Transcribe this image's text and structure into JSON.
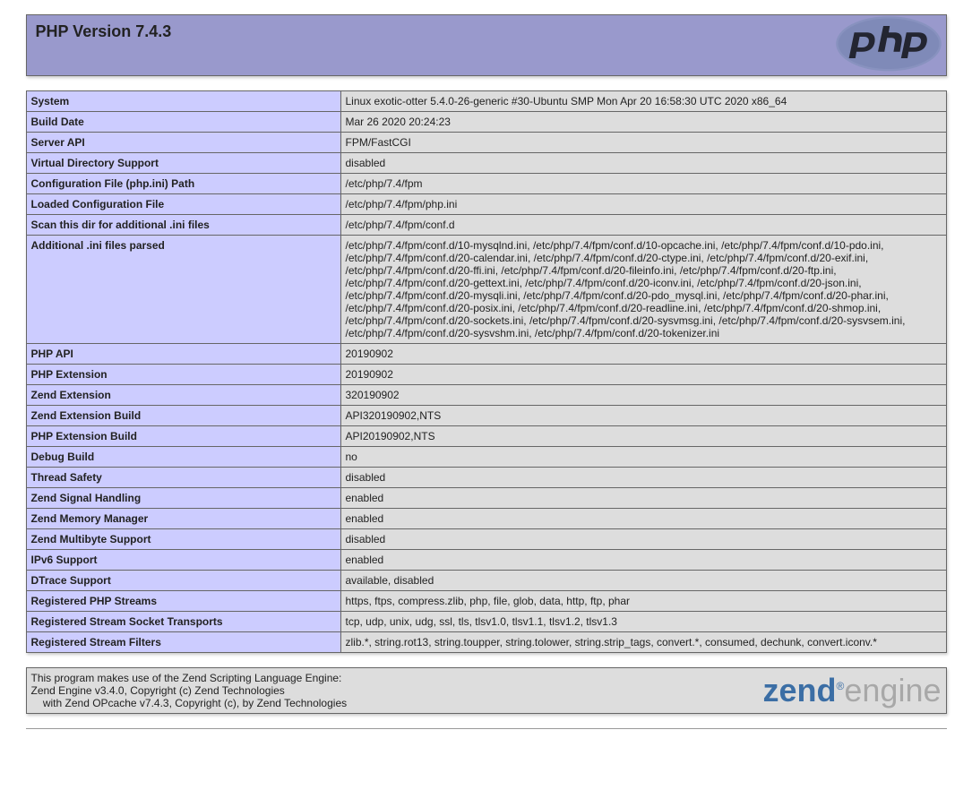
{
  "header": {
    "title": "PHP Version 7.4.3"
  },
  "rows": [
    {
      "label": "System",
      "value": "Linux exotic-otter 5.4.0-26-generic #30-Ubuntu SMP Mon Apr 20 16:58:30 UTC 2020 x86_64"
    },
    {
      "label": "Build Date",
      "value": "Mar 26 2020 20:24:23"
    },
    {
      "label": "Server API",
      "value": "FPM/FastCGI"
    },
    {
      "label": "Virtual Directory Support",
      "value": "disabled"
    },
    {
      "label": "Configuration File (php.ini) Path",
      "value": "/etc/php/7.4/fpm"
    },
    {
      "label": "Loaded Configuration File",
      "value": "/etc/php/7.4/fpm/php.ini"
    },
    {
      "label": "Scan this dir for additional .ini files",
      "value": "/etc/php/7.4/fpm/conf.d"
    },
    {
      "label": "Additional .ini files parsed",
      "value": "/etc/php/7.4/fpm/conf.d/10-mysqlnd.ini, /etc/php/7.4/fpm/conf.d/10-opcache.ini, /etc/php/7.4/fpm/conf.d/10-pdo.ini, /etc/php/7.4/fpm/conf.d/20-calendar.ini, /etc/php/7.4/fpm/conf.d/20-ctype.ini, /etc/php/7.4/fpm/conf.d/20-exif.ini, /etc/php/7.4/fpm/conf.d/20-ffi.ini, /etc/php/7.4/fpm/conf.d/20-fileinfo.ini, /etc/php/7.4/fpm/conf.d/20-ftp.ini, /etc/php/7.4/fpm/conf.d/20-gettext.ini, /etc/php/7.4/fpm/conf.d/20-iconv.ini, /etc/php/7.4/fpm/conf.d/20-json.ini, /etc/php/7.4/fpm/conf.d/20-mysqli.ini, /etc/php/7.4/fpm/conf.d/20-pdo_mysql.ini, /etc/php/7.4/fpm/conf.d/20-phar.ini, /etc/php/7.4/fpm/conf.d/20-posix.ini, /etc/php/7.4/fpm/conf.d/20-readline.ini, /etc/php/7.4/fpm/conf.d/20-shmop.ini, /etc/php/7.4/fpm/conf.d/20-sockets.ini, /etc/php/7.4/fpm/conf.d/20-sysvmsg.ini, /etc/php/7.4/fpm/conf.d/20-sysvsem.ini, /etc/php/7.4/fpm/conf.d/20-sysvshm.ini, /etc/php/7.4/fpm/conf.d/20-tokenizer.ini"
    },
    {
      "label": "PHP API",
      "value": "20190902"
    },
    {
      "label": "PHP Extension",
      "value": "20190902"
    },
    {
      "label": "Zend Extension",
      "value": "320190902"
    },
    {
      "label": "Zend Extension Build",
      "value": "API320190902,NTS"
    },
    {
      "label": "PHP Extension Build",
      "value": "API20190902,NTS"
    },
    {
      "label": "Debug Build",
      "value": "no"
    },
    {
      "label": "Thread Safety",
      "value": "disabled"
    },
    {
      "label": "Zend Signal Handling",
      "value": "enabled"
    },
    {
      "label": "Zend Memory Manager",
      "value": "enabled"
    },
    {
      "label": "Zend Multibyte Support",
      "value": "disabled"
    },
    {
      "label": "IPv6 Support",
      "value": "enabled"
    },
    {
      "label": "DTrace Support",
      "value": "available, disabled"
    },
    {
      "label": "Registered PHP Streams",
      "value": "https, ftps, compress.zlib, php, file, glob, data, http, ftp, phar"
    },
    {
      "label": "Registered Stream Socket Transports",
      "value": "tcp, udp, unix, udg, ssl, tls, tlsv1.0, tlsv1.1, tlsv1.2, tlsv1.3"
    },
    {
      "label": "Registered Stream Filters",
      "value": "zlib.*, string.rot13, string.toupper, string.tolower, string.strip_tags, convert.*, consumed, dechunk, convert.iconv.*"
    }
  ],
  "zend": {
    "line1": "This program makes use of the Zend Scripting Language Engine:",
    "line2": "Zend Engine v3.4.0, Copyright (c) Zend Technologies",
    "line3": "    with Zend OPcache v7.4.3, Copyright (c), by Zend Technologies",
    "logo_zend": "zend",
    "logo_engine": "engine"
  },
  "colors": {
    "header_bg": "#9999cc",
    "label_bg": "#ccccff",
    "value_bg": "#dddddd",
    "border": "#666666"
  }
}
